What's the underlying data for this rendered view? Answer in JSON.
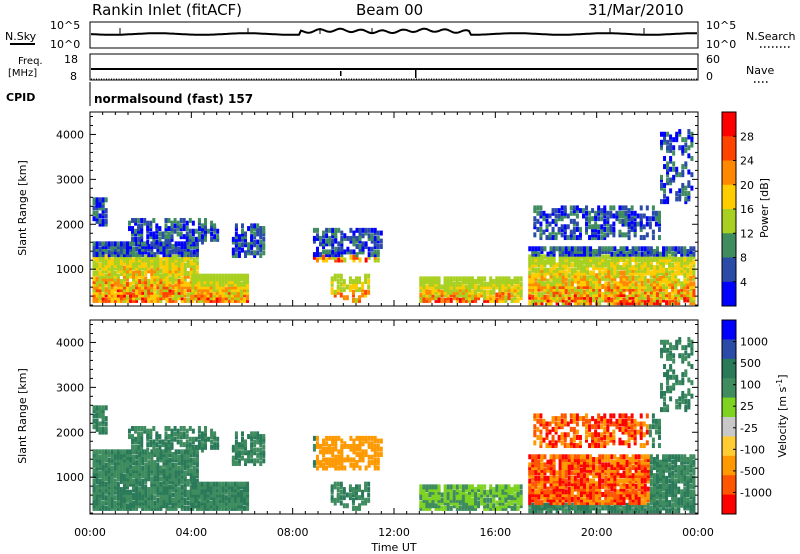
{
  "header": {
    "site": "Rankin Inlet (fitACF)",
    "beam": "Beam 00",
    "date": "31/Mar/2010"
  },
  "noise_panel": {
    "left_label": "N.Sky",
    "left_ticks": [
      "10^5",
      "10^0"
    ],
    "right_label": "N.Search",
    "right_ticks": [
      "10^5",
      "10^0"
    ]
  },
  "freq_panel": {
    "left_label_1": "Freq.",
    "left_label_2": "[MHz]",
    "left_ticks": [
      "18",
      "8"
    ],
    "right_label": "Nave",
    "right_ticks": [
      "60",
      "0"
    ]
  },
  "cpid_panel": {
    "label": "CPID",
    "text": "normalsound (fast) 157"
  },
  "colors": {
    "power_scale": [
      "#0000ff",
      "#2b4ba8",
      "#3f8c5f",
      "#a8d020",
      "#ffcc00",
      "#ff8800",
      "#ff4400",
      "#ff0000"
    ],
    "velocity_scale": [
      "#ff0000",
      "#ff5500",
      "#ff9900",
      "#ffcc33",
      "#c8c8c8",
      "#7ed321",
      "#3f8c5f",
      "#2a7a5a",
      "#2b4ba8",
      "#0000ff"
    ]
  },
  "chart_data": [
    {
      "type": "heatmap",
      "name": "power",
      "ylabel": "Slant Range [km]",
      "yticks": [
        "1000",
        "2000",
        "3000",
        "4000"
      ],
      "ylim": [
        180,
        4500
      ],
      "colorbar": {
        "label": "Power [dB]",
        "ticks": [
          "4",
          "8",
          "12",
          "16",
          "20",
          "24",
          "28"
        ],
        "range": [
          0,
          32
        ]
      }
    },
    {
      "type": "heatmap",
      "name": "velocity",
      "ylabel": "Slant Range [km]",
      "yticks": [
        "1000",
        "2000",
        "3000",
        "4000"
      ],
      "ylim": [
        180,
        4500
      ],
      "xlabel": "Time UT",
      "xticks": [
        "00:00",
        "04:00",
        "08:00",
        "12:00",
        "16:00",
        "20:00",
        "00:00"
      ],
      "colorbar": {
        "label": "Velocity [m s-1]",
        "label_main": "Velocity [m s",
        "label_sup": "-1",
        "label_end": "]",
        "ticks": [
          "1000",
          "500",
          "100",
          "25",
          "-25",
          "-100",
          "-500",
          "-1000"
        ]
      }
    }
  ]
}
